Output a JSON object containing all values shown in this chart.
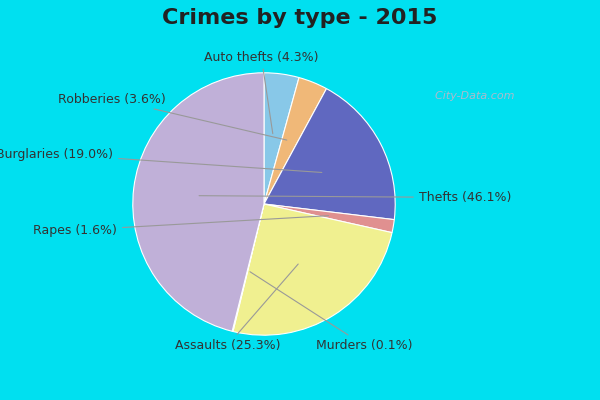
{
  "title": "Crimes by type - 2015",
  "pie_labels": [
    "Auto thefts (4.3%)",
    "Robberies (3.6%)",
    "Burglaries (19.0%)",
    "Rapes (1.6%)",
    "Assaults (25.3%)",
    "Murders (0.1%)",
    "Thefts (46.1%)"
  ],
  "pie_values": [
    4.3,
    3.6,
    19.0,
    1.6,
    25.3,
    0.1,
    46.1
  ],
  "pie_colors": [
    "#88c8e8",
    "#f0b878",
    "#6068c0",
    "#e09090",
    "#f0f090",
    "#f5f0b0",
    "#c0b0d8"
  ],
  "bg_cyan": "#00e0f0",
  "bg_chart": "#d4edd8",
  "title_color": "#222222",
  "label_color": "#333333",
  "line_color": "#999999",
  "title_fontsize": 16,
  "label_fontsize": 9,
  "watermark_text": "  City-Data.com",
  "watermark_color": "#aabbcc",
  "startangle": 90
}
